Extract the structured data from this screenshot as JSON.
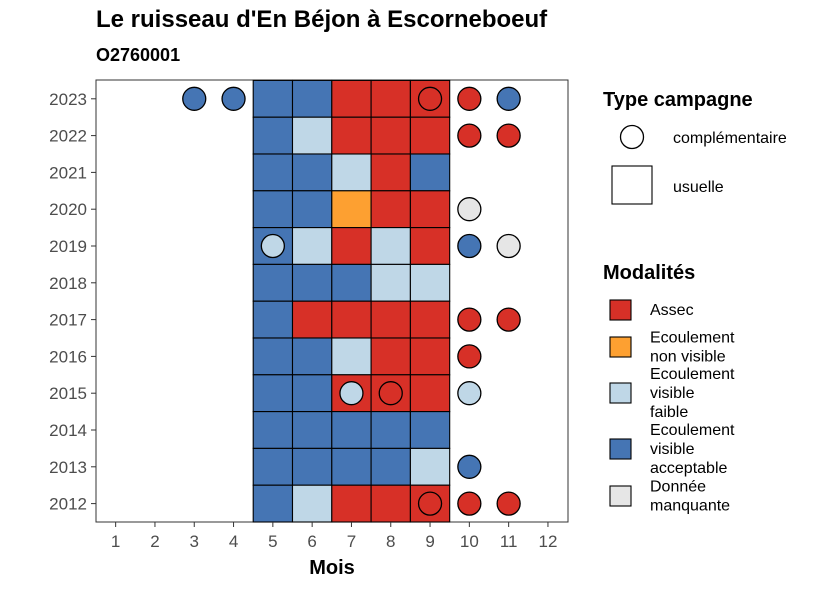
{
  "title": "Le ruisseau d'En Béjon à Escorneboeuf",
  "subtitle": "O2760001",
  "chart_data": {
    "type": "heatmap",
    "xlabel": "Mois",
    "ylabel": "",
    "x_ticks": [
      "1",
      "2",
      "3",
      "4",
      "5",
      "6",
      "7",
      "8",
      "9",
      "10",
      "11",
      "12"
    ],
    "y_ticks": [
      "2012",
      "2013",
      "2014",
      "2015",
      "2016",
      "2017",
      "2018",
      "2019",
      "2020",
      "2021",
      "2022",
      "2023"
    ],
    "colors": {
      "Assec": "#d73027",
      "Ecoulement non visible": "#fda031",
      "Ecoulement visible faible": "#bfd7e7",
      "Ecoulement visible acceptable": "#4575b4",
      "Donnée manquante": "#e6e6e6"
    },
    "usuelle": [
      {
        "year": 2023,
        "cells": [
          "Ecoulement visible acceptable",
          "Ecoulement visible acceptable",
          "Assec",
          "Assec",
          "Assec"
        ]
      },
      {
        "year": 2022,
        "cells": [
          "Ecoulement visible acceptable",
          "Ecoulement visible faible",
          "Assec",
          "Assec",
          "Assec"
        ]
      },
      {
        "year": 2021,
        "cells": [
          "Ecoulement visible acceptable",
          "Ecoulement visible acceptable",
          "Ecoulement visible faible",
          "Assec",
          "Ecoulement visible acceptable"
        ]
      },
      {
        "year": 2020,
        "cells": [
          "Ecoulement visible acceptable",
          "Ecoulement visible acceptable",
          "Ecoulement non visible",
          "Assec",
          "Assec"
        ]
      },
      {
        "year": 2019,
        "cells": [
          "Ecoulement visible acceptable",
          "Ecoulement visible faible",
          "Assec",
          "Ecoulement visible faible",
          "Assec"
        ]
      },
      {
        "year": 2018,
        "cells": [
          "Ecoulement visible acceptable",
          "Ecoulement visible acceptable",
          "Ecoulement visible acceptable",
          "Ecoulement visible faible",
          "Ecoulement visible faible"
        ]
      },
      {
        "year": 2017,
        "cells": [
          "Ecoulement visible acceptable",
          "Assec",
          "Assec",
          "Assec",
          "Assec"
        ]
      },
      {
        "year": 2016,
        "cells": [
          "Ecoulement visible acceptable",
          "Ecoulement visible acceptable",
          "Ecoulement visible faible",
          "Assec",
          "Assec"
        ]
      },
      {
        "year": 2015,
        "cells": [
          "Ecoulement visible acceptable",
          "Ecoulement visible acceptable",
          "Assec",
          "Assec",
          "Assec"
        ]
      },
      {
        "year": 2014,
        "cells": [
          "Ecoulement visible acceptable",
          "Ecoulement visible acceptable",
          "Ecoulement visible acceptable",
          "Ecoulement visible acceptable",
          "Ecoulement visible acceptable"
        ]
      },
      {
        "year": 2013,
        "cells": [
          "Ecoulement visible acceptable",
          "Ecoulement visible acceptable",
          "Ecoulement visible acceptable",
          "Ecoulement visible acceptable",
          "Ecoulement visible faible"
        ]
      },
      {
        "year": 2012,
        "cells": [
          "Ecoulement visible acceptable",
          "Ecoulement visible faible",
          "Assec",
          "Assec",
          "Assec"
        ]
      }
    ],
    "usuelle_start_month": 5,
    "complementaire": [
      {
        "year": 2023,
        "month": 3,
        "value": "Ecoulement visible acceptable"
      },
      {
        "year": 2023,
        "month": 4,
        "value": "Ecoulement visible acceptable"
      },
      {
        "year": 2023,
        "month": 9,
        "value": "Assec"
      },
      {
        "year": 2023,
        "month": 10,
        "value": "Assec"
      },
      {
        "year": 2023,
        "month": 11,
        "value": "Ecoulement visible acceptable"
      },
      {
        "year": 2022,
        "month": 10,
        "value": "Assec"
      },
      {
        "year": 2022,
        "month": 11,
        "value": "Assec"
      },
      {
        "year": 2020,
        "month": 10,
        "value": "Donnée manquante"
      },
      {
        "year": 2019,
        "month": 5,
        "value": "Ecoulement visible faible"
      },
      {
        "year": 2019,
        "month": 10,
        "value": "Ecoulement visible acceptable"
      },
      {
        "year": 2019,
        "month": 11,
        "value": "Donnée manquante"
      },
      {
        "year": 2017,
        "month": 10,
        "value": "Assec"
      },
      {
        "year": 2017,
        "month": 11,
        "value": "Assec"
      },
      {
        "year": 2016,
        "month": 10,
        "value": "Assec"
      },
      {
        "year": 2015,
        "month": 7,
        "value": "Ecoulement visible faible"
      },
      {
        "year": 2015,
        "month": 8,
        "value": "Assec"
      },
      {
        "year": 2015,
        "month": 10,
        "value": "Ecoulement visible faible"
      },
      {
        "year": 2013,
        "month": 10,
        "value": "Ecoulement visible acceptable"
      },
      {
        "year": 2012,
        "month": 9,
        "value": "Assec"
      },
      {
        "year": 2012,
        "month": 10,
        "value": "Assec"
      },
      {
        "year": 2012,
        "month": 11,
        "value": "Assec"
      }
    ],
    "grid": false,
    "legend_position": "right"
  },
  "legend": {
    "type_title": "Type campagne",
    "type_items": [
      "complémentaire",
      "usuelle"
    ],
    "modalites_title": "Modalités",
    "modalites_items": [
      {
        "key": "Assec",
        "lines": [
          "Assec"
        ]
      },
      {
        "key": "Ecoulement non visible",
        "lines": [
          "Ecoulement",
          "non visible"
        ]
      },
      {
        "key": "Ecoulement visible faible",
        "lines": [
          "Ecoulement",
          "visible",
          "faible"
        ]
      },
      {
        "key": "Ecoulement visible acceptable",
        "lines": [
          "Ecoulement",
          "visible",
          "acceptable"
        ]
      },
      {
        "key": "Donnée manquante",
        "lines": [
          "Donnée",
          "manquante"
        ]
      }
    ]
  }
}
